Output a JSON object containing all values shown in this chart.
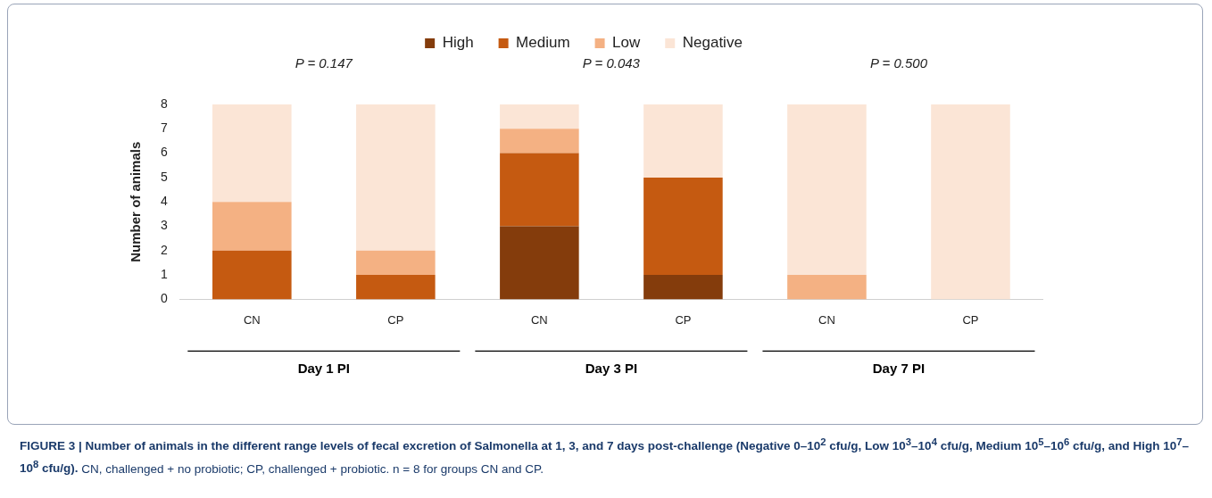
{
  "chart_data": {
    "type": "bar",
    "stacked": true,
    "ylabel": "Number of animals",
    "categories": [
      "CN",
      "CP",
      "CN",
      "CP",
      "CN",
      "CP"
    ],
    "series": [
      {
        "name": "High",
        "color": "#843c0c",
        "values": [
          0,
          0,
          3,
          1,
          0,
          0
        ]
      },
      {
        "name": "Medium",
        "color": "#c55a11",
        "values": [
          2,
          1,
          3,
          4,
          0,
          0
        ]
      },
      {
        "name": "Low",
        "color": "#f4b183",
        "values": [
          2,
          1,
          1,
          0,
          1,
          0
        ]
      },
      {
        "name": "Negative",
        "color": "#fbe5d6",
        "values": [
          4,
          6,
          1,
          3,
          7,
          8
        ]
      }
    ],
    "ylim": [
      0,
      8
    ],
    "yticks": [
      0,
      1,
      2,
      3,
      4,
      5,
      6,
      7,
      8
    ],
    "grid": false,
    "legend": "top",
    "annotations": [
      "P = 0.147",
      "P = 0.043",
      "P = 0.500",
      "Day 1 PI",
      "Day 3 PI",
      "Day 7 PI",
      "FIGURE 3 | Number of animals in the different range levels of fecal excretion of Salmonella at 1, 3, and 7 days post-challenge (Negative 0–10$^{2}$ cfu/g, Low 10$^{3}$–10$^{4}$ cfu/g, Medium 10$^{5}$–10$^{6}$ cfu/g, and High 10$^{7}$–10$^{8}$ cfu/g).",
      "CN, challenged + no probiotic; CP, challenged + probiotic. n = 8 for groups CN and CP."
    ]
  }
}
